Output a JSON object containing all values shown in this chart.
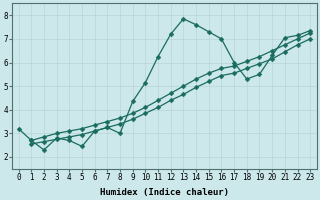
{
  "title": "",
  "xlabel": "Humidex (Indice chaleur)",
  "ylabel": "",
  "bg_color": "#cce8ea",
  "line_color": "#1a6b60",
  "grid_color": "#b8d4d6",
  "xlim": [
    -0.5,
    23.5
  ],
  "ylim": [
    1.5,
    8.5
  ],
  "xticks": [
    0,
    1,
    2,
    3,
    4,
    5,
    6,
    7,
    8,
    9,
    10,
    11,
    12,
    13,
    14,
    15,
    16,
    17,
    18,
    19,
    20,
    21,
    22,
    23
  ],
  "yticks": [
    2,
    3,
    4,
    5,
    6,
    7,
    8
  ],
  "line1_x": [
    0,
    1,
    2,
    3,
    4,
    5,
    6,
    7,
    8,
    9,
    10,
    11,
    12,
    13,
    14,
    15,
    16,
    17,
    18,
    19,
    20,
    21,
    22,
    23
  ],
  "line1_y": [
    3.2,
    2.7,
    2.3,
    2.8,
    2.7,
    2.45,
    3.1,
    3.25,
    3.0,
    4.35,
    5.15,
    6.25,
    7.2,
    7.85,
    7.6,
    7.3,
    7.0,
    6.0,
    5.3,
    5.5,
    6.3,
    7.05,
    7.15,
    7.35
  ],
  "line2_x": [
    1,
    2,
    3,
    4,
    5,
    6,
    7,
    8,
    9,
    10,
    11,
    12,
    13,
    14,
    15,
    16,
    17,
    18,
    19,
    20,
    21,
    22,
    23
  ],
  "line2_y": [
    2.55,
    2.65,
    2.75,
    2.85,
    2.95,
    3.1,
    3.25,
    3.4,
    3.6,
    3.85,
    4.1,
    4.4,
    4.65,
    4.95,
    5.2,
    5.45,
    5.55,
    5.75,
    5.95,
    6.15,
    6.45,
    6.75,
    7.0
  ],
  "line3_x": [
    1,
    2,
    3,
    4,
    5,
    6,
    7,
    8,
    9,
    10,
    11,
    12,
    13,
    14,
    15,
    16,
    17,
    18,
    19,
    20,
    21,
    22,
    23
  ],
  "line3_y": [
    2.7,
    2.85,
    3.0,
    3.1,
    3.2,
    3.35,
    3.5,
    3.65,
    3.85,
    4.1,
    4.4,
    4.7,
    5.0,
    5.3,
    5.55,
    5.75,
    5.85,
    6.05,
    6.25,
    6.5,
    6.75,
    7.0,
    7.25
  ],
  "marker_size": 2.5,
  "line_width": 0.9,
  "tick_fontsize": 5.5,
  "label_fontsize": 6.5
}
